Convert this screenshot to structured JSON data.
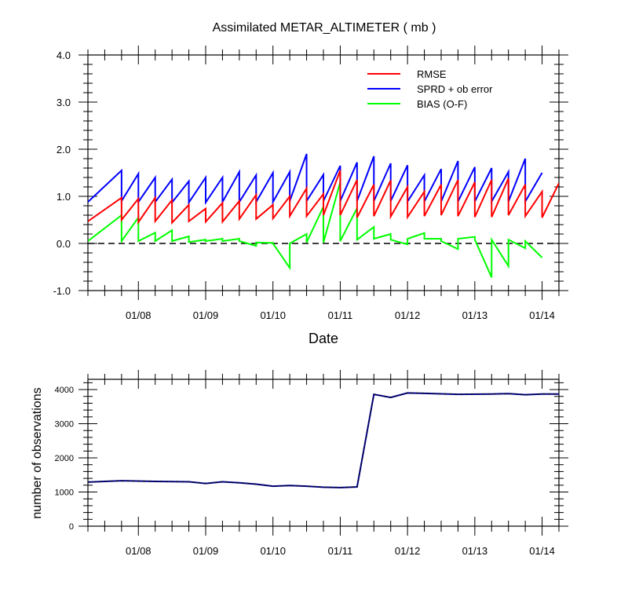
{
  "chart_data": [
    {
      "type": "line",
      "title": "Assimilated METAR_ALTIMETER ( mb )",
      "xlabel": "Date",
      "ylabel": "",
      "ylim": [
        -1.0,
        4.0
      ],
      "xlim": [
        "01/07 06",
        "01/14 06"
      ],
      "yticks": [
        "-1.0",
        "0.0",
        "1.0",
        "2.0",
        "3.0",
        "4.0"
      ],
      "xtick_labels": [
        "01/08",
        "01/09",
        "01/10",
        "01/11",
        "01/12",
        "01/13",
        "01/14"
      ],
      "legend": {
        "placement": "top-right",
        "entries": [
          "RMSE",
          "SPRD + ob error",
          "BIAS (O-F)"
        ]
      },
      "grid": false,
      "reference_line": {
        "y": 0,
        "style": "dashed"
      },
      "series": [
        {
          "name": "RMSE",
          "color": "#ff0000",
          "points": [
            [
              0,
              0.47
            ],
            [
              0.5,
              0.97
            ],
            [
              0.5,
              0.5
            ],
            [
              0.75,
              0.95
            ],
            [
              0.75,
              0.45
            ],
            [
              1.0,
              0.97
            ],
            [
              1.0,
              0.47
            ],
            [
              1.25,
              0.92
            ],
            [
              1.25,
              0.44
            ],
            [
              1.5,
              0.82
            ],
            [
              1.5,
              0.47
            ],
            [
              1.75,
              0.74
            ],
            [
              1.75,
              0.46
            ],
            [
              2.0,
              0.86
            ],
            [
              2.0,
              0.46
            ],
            [
              2.25,
              0.9
            ],
            [
              2.25,
              0.52
            ],
            [
              2.5,
              1.03
            ],
            [
              2.5,
              0.52
            ],
            [
              2.75,
              0.82
            ],
            [
              2.75,
              0.53
            ],
            [
              3.0,
              1.0
            ],
            [
              3.0,
              0.58
            ],
            [
              3.25,
              1.17
            ],
            [
              3.25,
              0.58
            ],
            [
              3.5,
              1.05
            ],
            [
              3.5,
              0.6
            ],
            [
              3.75,
              1.55
            ],
            [
              3.75,
              0.6
            ],
            [
              4.0,
              1.35
            ],
            [
              4.0,
              0.55
            ],
            [
              4.25,
              1.25
            ],
            [
              4.25,
              0.58
            ],
            [
              4.5,
              1.34
            ],
            [
              4.5,
              0.57
            ],
            [
              4.75,
              1.2
            ],
            [
              4.75,
              0.56
            ],
            [
              5.0,
              1.1
            ],
            [
              5.0,
              0.58
            ],
            [
              5.25,
              1.25
            ],
            [
              5.25,
              0.6
            ],
            [
              5.5,
              1.35
            ],
            [
              5.5,
              0.58
            ],
            [
              5.75,
              1.3
            ],
            [
              5.75,
              0.56
            ],
            [
              6.0,
              1.35
            ],
            [
              6.0,
              0.56
            ],
            [
              6.25,
              1.38
            ],
            [
              6.25,
              0.6
            ],
            [
              6.5,
              1.25
            ],
            [
              6.5,
              0.58
            ],
            [
              6.75,
              1.1
            ],
            [
              6.75,
              0.55
            ],
            [
              7.0,
              1.28
            ]
          ]
        },
        {
          "name": "SPRD + ob error",
          "color": "#0000ff",
          "points": [
            [
              0,
              0.88
            ],
            [
              0.5,
              1.55
            ],
            [
              0.5,
              0.9
            ],
            [
              0.75,
              1.48
            ],
            [
              0.75,
              0.88
            ],
            [
              1.0,
              1.4
            ],
            [
              1.0,
              0.88
            ],
            [
              1.25,
              1.36
            ],
            [
              1.25,
              0.87
            ],
            [
              1.5,
              1.32
            ],
            [
              1.5,
              0.87
            ],
            [
              1.75,
              1.4
            ],
            [
              1.75,
              0.87
            ],
            [
              2.0,
              1.4
            ],
            [
              2.0,
              0.88
            ],
            [
              2.25,
              1.52
            ],
            [
              2.25,
              0.88
            ],
            [
              2.5,
              1.45
            ],
            [
              2.5,
              0.88
            ],
            [
              2.75,
              1.5
            ],
            [
              2.75,
              0.88
            ],
            [
              3.0,
              1.52
            ],
            [
              3.0,
              0.9
            ],
            [
              3.25,
              1.9
            ],
            [
              3.25,
              0.9
            ],
            [
              3.5,
              1.46
            ],
            [
              3.5,
              0.9
            ],
            [
              3.75,
              1.65
            ],
            [
              3.75,
              0.9
            ],
            [
              4.0,
              1.72
            ],
            [
              4.0,
              0.9
            ],
            [
              4.25,
              1.85
            ],
            [
              4.25,
              0.9
            ],
            [
              4.5,
              1.7
            ],
            [
              4.5,
              0.9
            ],
            [
              4.75,
              1.66
            ],
            [
              4.75,
              0.89
            ],
            [
              5.0,
              1.45
            ],
            [
              5.0,
              0.89
            ],
            [
              5.25,
              1.58
            ],
            [
              5.25,
              0.89
            ],
            [
              5.5,
              1.75
            ],
            [
              5.5,
              0.89
            ],
            [
              5.75,
              1.62
            ],
            [
              5.75,
              0.89
            ],
            [
              6.0,
              1.6
            ],
            [
              6.0,
              0.89
            ],
            [
              6.25,
              1.52
            ],
            [
              6.25,
              0.89
            ],
            [
              6.5,
              1.8
            ],
            [
              6.5,
              0.89
            ],
            [
              6.75,
              1.5
            ]
          ]
        },
        {
          "name": "BIAS (O-F)",
          "color": "#00ff00",
          "points": [
            [
              0,
              0.05
            ],
            [
              0.5,
              0.6
            ],
            [
              0.5,
              0.05
            ],
            [
              0.75,
              0.55
            ],
            [
              0.75,
              0.05
            ],
            [
              1.0,
              0.23
            ],
            [
              1.0,
              0.05
            ],
            [
              1.25,
              0.28
            ],
            [
              1.25,
              0.05
            ],
            [
              1.5,
              0.15
            ],
            [
              1.5,
              0.03
            ],
            [
              1.75,
              0.08
            ],
            [
              1.75,
              0.05
            ],
            [
              2.0,
              0.1
            ],
            [
              2.0,
              0.05
            ],
            [
              2.25,
              0.1
            ],
            [
              2.25,
              0.05
            ],
            [
              2.5,
              -0.05
            ],
            [
              2.5,
              0.02
            ],
            [
              2.75,
              0.01
            ],
            [
              2.75,
              0.0
            ],
            [
              3.0,
              -0.52
            ],
            [
              3.0,
              0.0
            ],
            [
              3.25,
              0.2
            ],
            [
              3.25,
              0.02
            ],
            [
              3.5,
              0.78
            ],
            [
              3.5,
              0.02
            ],
            [
              3.75,
              1.3
            ],
            [
              3.75,
              0.05
            ],
            [
              4.0,
              0.75
            ],
            [
              4.0,
              0.08
            ],
            [
              4.25,
              0.35
            ],
            [
              4.25,
              0.1
            ],
            [
              4.5,
              0.2
            ],
            [
              4.5,
              0.08
            ],
            [
              4.75,
              -0.02
            ],
            [
              4.75,
              0.1
            ],
            [
              5.0,
              0.22
            ],
            [
              5.0,
              0.1
            ],
            [
              5.25,
              0.1
            ],
            [
              5.25,
              0.05
            ],
            [
              5.5,
              -0.12
            ],
            [
              5.5,
              0.1
            ],
            [
              5.75,
              0.14
            ],
            [
              5.75,
              0.08
            ],
            [
              6.0,
              -0.72
            ],
            [
              6.0,
              0.08
            ],
            [
              6.25,
              -0.48
            ],
            [
              6.25,
              0.08
            ],
            [
              6.5,
              -0.1
            ],
            [
              6.5,
              0.05
            ],
            [
              6.75,
              -0.3
            ]
          ]
        }
      ]
    },
    {
      "type": "line",
      "title": "",
      "xlabel": "",
      "ylabel": "number of observations",
      "ylim": [
        0,
        4300
      ],
      "yticks": [
        "0",
        "1000",
        "2000",
        "3000",
        "4000"
      ],
      "xtick_labels": [
        "01/08",
        "01/09",
        "01/10",
        "01/11",
        "01/12",
        "01/13",
        "01/14"
      ],
      "grid": false,
      "series": [
        {
          "name": "",
          "color": "#00008b",
          "points": [
            [
              0,
              1290
            ],
            [
              0.5,
              1330
            ],
            [
              1.0,
              1310
            ],
            [
              1.5,
              1300
            ],
            [
              1.75,
              1250
            ],
            [
              2.0,
              1300
            ],
            [
              2.25,
              1270
            ],
            [
              2.5,
              1230
            ],
            [
              2.75,
              1170
            ],
            [
              3.0,
              1190
            ],
            [
              3.25,
              1170
            ],
            [
              3.5,
              1140
            ],
            [
              3.75,
              1130
            ],
            [
              4.0,
              1150
            ],
            [
              4.25,
              3860
            ],
            [
              4.5,
              3770
            ],
            [
              4.75,
              3900
            ],
            [
              5.0,
              3890
            ],
            [
              5.5,
              3860
            ],
            [
              6.0,
              3870
            ],
            [
              6.25,
              3880
            ],
            [
              6.5,
              3850
            ],
            [
              6.75,
              3870
            ],
            [
              7.0,
              3870
            ]
          ]
        }
      ]
    }
  ]
}
